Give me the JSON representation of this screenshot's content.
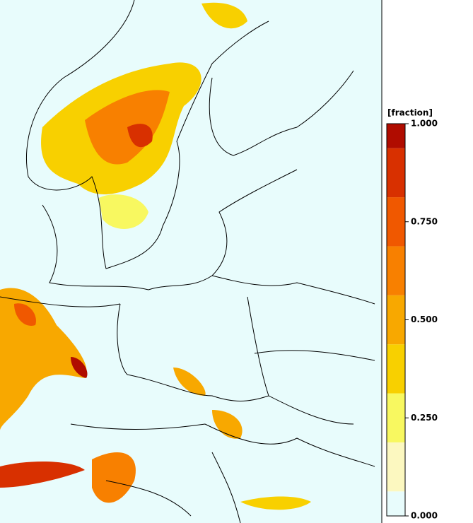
{
  "colorbar": {
    "unit": "[fraction]",
    "ticks": [
      {
        "value": 0,
        "label": "0.000"
      },
      {
        "value": 0.25,
        "label": "0.250"
      },
      {
        "value": 0.5,
        "label": "0.500"
      },
      {
        "value": 0.75,
        "label": "0.750"
      },
      {
        "value": 1,
        "label": "1.000"
      }
    ],
    "bounds": [
      0,
      0.0625,
      0.1875,
      0.3125,
      0.4375,
      0.5625,
      0.6875,
      0.8125,
      0.9375,
      1
    ],
    "colors": [
      "#e8fcfc",
      "#fcf8c0",
      "#f8f860",
      "#f8d000",
      "#f8a800",
      "#f88000",
      "#f05800",
      "#d83000",
      "#b00c00"
    ],
    "lim": [
      0,
      1
    ]
  }
}
